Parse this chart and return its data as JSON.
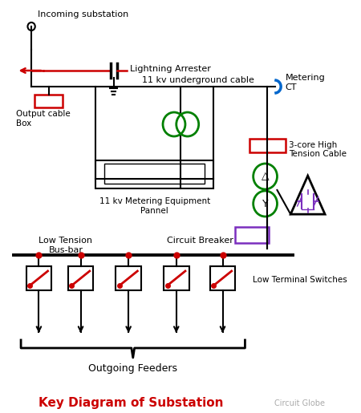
{
  "title": "Key Diagram of Substation",
  "title_color": "#cc0000",
  "watermark": "Circuit Globe",
  "bg_color": "#ffffff",
  "fig_width": 4.5,
  "fig_height": 5.15,
  "dpi": 100,
  "labels": {
    "incoming_substation": "Incoming substation",
    "lightning_arrester": "Lightning Arrester",
    "underground_cable": "11 kv underground cable",
    "output_cable_box": "Output cable\nBox",
    "metering_ct": "Metering\nCT",
    "metering_panel": "11 kv Metering Equipment\nPannel",
    "high_tension": "3-core High\nTension Cable",
    "circuit_breaker": "Circuit Breaker",
    "low_tension": "Low Tension\nBus-bar",
    "low_terminal": "Low Terminal Switches",
    "outgoing_feeders": "Outgoing Feeders"
  }
}
